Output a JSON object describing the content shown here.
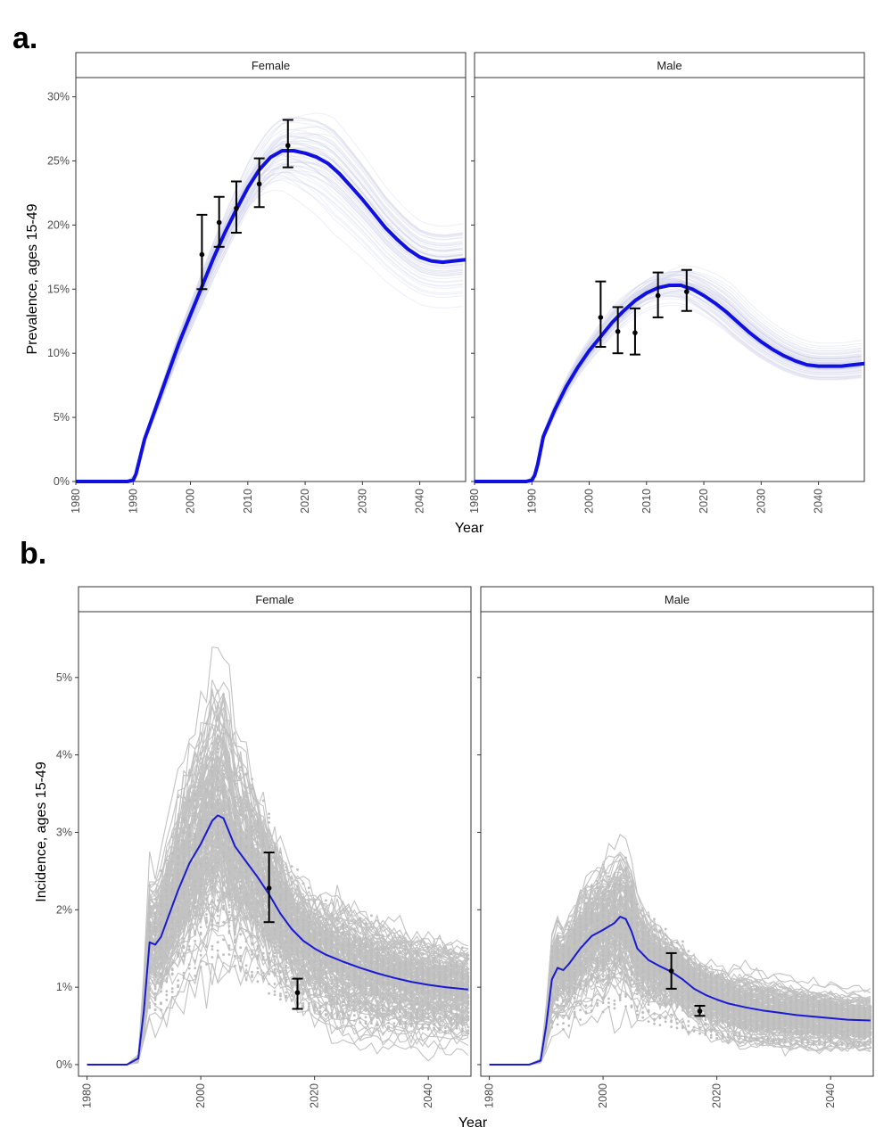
{
  "figure": {
    "panel_a_label": "a.",
    "panel_b_label": "b."
  },
  "chart_data": [
    {
      "type": "line",
      "panel": "a.",
      "xlabel": "Year",
      "ylabel": "Prevalence, ages 15-49",
      "xlim": [
        1980,
        2048
      ],
      "ylim": [
        0,
        31.5
      ],
      "x_ticks": [
        1980,
        1990,
        2000,
        2010,
        2020,
        2030,
        2040
      ],
      "y_ticks": [
        0,
        5,
        10,
        15,
        20,
        25,
        30
      ],
      "y_tick_labels": [
        "0%",
        "5%",
        "10%",
        "15%",
        "20%",
        "25%",
        "30%"
      ],
      "facets": [
        {
          "label": "Female",
          "central_line": {
            "color": "#1010e0",
            "x": [
              1980,
              1985,
              1989,
              1990,
              1990.5,
              1991,
              1992,
              1994,
              1996,
              1998,
              2000,
              2002,
              2004,
              2006,
              2008,
              2010,
              2012,
              2014,
              2016,
              2018,
              2020,
              2022,
              2024,
              2026,
              2028,
              2030,
              2032,
              2034,
              2036,
              2038,
              2040,
              2042,
              2044,
              2046,
              2048
            ],
            "y": [
              0,
              0,
              0,
              0.1,
              0.6,
              1.5,
              3.3,
              5.8,
              8.3,
              10.8,
              13.0,
              15.2,
              17.4,
              19.4,
              21.2,
              22.9,
              24.3,
              25.3,
              25.8,
              25.8,
              25.6,
              25.3,
              24.8,
              24.0,
              23.0,
              22.0,
              20.9,
              19.8,
              18.9,
              18.1,
              17.5,
              17.2,
              17.1,
              17.2,
              17.3
            ]
          },
          "observed": {
            "x": [
              2002,
              2005,
              2008,
              2012,
              2017
            ],
            "y": [
              17.7,
              20.2,
              21.3,
              23.2,
              26.2
            ],
            "lower": [
              15.0,
              18.3,
              19.4,
              21.4,
              24.5
            ],
            "upper": [
              20.8,
              22.2,
              23.4,
              25.2,
              28.2
            ]
          }
        },
        {
          "label": "Male",
          "central_line": {
            "color": "#1010e0",
            "x": [
              1980,
              1985,
              1989,
              1990,
              1990.5,
              1991,
              1992,
              1994,
              1996,
              1998,
              2000,
              2002,
              2004,
              2006,
              2008,
              2010,
              2012,
              2014,
              2016,
              2018,
              2020,
              2022,
              2024,
              2026,
              2028,
              2030,
              2032,
              2034,
              2036,
              2038,
              2040,
              2042,
              2044,
              2046,
              2048
            ],
            "y": [
              0,
              0,
              0,
              0.1,
              0.5,
              1.3,
              3.5,
              5.6,
              7.4,
              8.9,
              10.2,
              11.3,
              12.4,
              13.3,
              14.1,
              14.7,
              15.1,
              15.3,
              15.3,
              15.0,
              14.5,
              13.9,
              13.2,
              12.4,
              11.6,
              10.9,
              10.3,
              9.8,
              9.4,
              9.1,
              9.0,
              9.0,
              9.0,
              9.1,
              9.2
            ]
          },
          "observed": {
            "x": [
              2002,
              2005,
              2008,
              2012,
              2017
            ],
            "y": [
              12.8,
              11.7,
              11.6,
              14.5,
              14.8
            ],
            "lower": [
              10.5,
              10.0,
              9.9,
              12.8,
              13.3
            ],
            "upper": [
              15.6,
              13.6,
              13.5,
              16.3,
              16.5
            ]
          }
        }
      ]
    },
    {
      "type": "line",
      "panel": "b.",
      "xlabel": "Year",
      "ylabel": "Incidence, ages 15-49",
      "xlim": [
        1978.5,
        2047.5
      ],
      "ylim": [
        -0.15,
        5.85
      ],
      "x_ticks": [
        1980,
        2000,
        2020,
        2040
      ],
      "y_ticks": [
        0,
        1,
        2,
        3,
        4,
        5
      ],
      "y_tick_labels": [
        "0%",
        "1%",
        "2%",
        "3%",
        "4%",
        "5%"
      ],
      "facets": [
        {
          "label": "Female",
          "central_line": {
            "color": "#1a1ad0",
            "x": [
              1980,
              1985,
              1987,
              1989,
              1990,
              1991,
              1992,
              1993,
              1994,
              1996,
              1998,
              2000,
              2002,
              2003,
              2004,
              2005,
              2006,
              2007,
              2008,
              2010,
              2012,
              2014,
              2016,
              2018,
              2020,
              2022,
              2025,
              2028,
              2031,
              2034,
              2037,
              2040,
              2043,
              2047
            ],
            "y": [
              0,
              0,
              0,
              0.08,
              0.7,
              1.58,
              1.55,
              1.65,
              1.85,
              2.25,
              2.6,
              2.85,
              3.15,
              3.22,
              3.18,
              3.0,
              2.82,
              2.72,
              2.62,
              2.42,
              2.2,
              1.95,
              1.75,
              1.6,
              1.5,
              1.42,
              1.33,
              1.25,
              1.18,
              1.12,
              1.07,
              1.03,
              1.0,
              0.97
            ]
          },
          "observed": {
            "x": [
              2012,
              2017
            ],
            "y": [
              2.28,
              0.93
            ],
            "lower": [
              1.84,
              0.72
            ],
            "upper": [
              2.74,
              1.11
            ]
          }
        },
        {
          "label": "Male",
          "central_line": {
            "color": "#1a1ad0",
            "x": [
              1980,
              1985,
              1987,
              1989,
              1990,
              1991,
              1992,
              1993,
              1994,
              1996,
              1998,
              2000,
              2002,
              2003,
              2004,
              2005,
              2006,
              2008,
              2010,
              2012,
              2014,
              2016,
              2018,
              2020,
              2022,
              2025,
              2028,
              2031,
              2034,
              2037,
              2040,
              2043,
              2047
            ],
            "y": [
              0,
              0,
              0,
              0.05,
              0.5,
              1.1,
              1.25,
              1.22,
              1.3,
              1.5,
              1.66,
              1.74,
              1.83,
              1.91,
              1.88,
              1.72,
              1.5,
              1.35,
              1.27,
              1.2,
              1.1,
              0.98,
              0.9,
              0.84,
              0.79,
              0.74,
              0.7,
              0.67,
              0.64,
              0.62,
              0.6,
              0.58,
              0.57
            ]
          },
          "observed": {
            "x": [
              2012,
              2017
            ],
            "y": [
              1.21,
              0.69
            ],
            "lower": [
              0.98,
              0.63
            ],
            "upper": [
              1.44,
              0.76
            ]
          }
        }
      ]
    }
  ]
}
